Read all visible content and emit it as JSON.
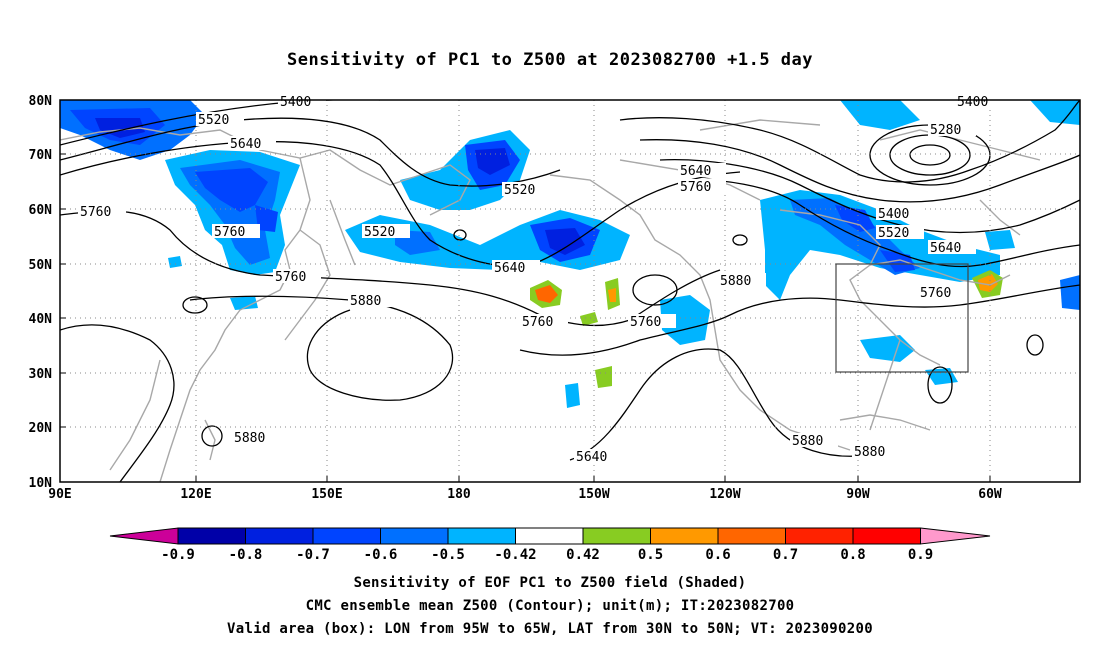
{
  "title": "Sensitivity of PC1 to Z500 at 2023082700 +1.5 day",
  "lat_labels": [
    "80N",
    "70N",
    "60N",
    "50N",
    "40N",
    "30N",
    "20N",
    "10N"
  ],
  "lon_labels": [
    "90E",
    "120E",
    "150E",
    "180",
    "150W",
    "120W",
    "90W",
    "60W"
  ],
  "contour_labels": [
    "5400",
    "5520",
    "5640",
    "5760",
    "5520",
    "5760",
    "5640",
    "5760",
    "5880",
    "5520",
    "5640",
    "5760",
    "5880",
    "5880",
    "5640",
    "5760",
    "5280",
    "5400",
    "5520",
    "5640",
    "5760",
    "5880",
    "5880",
    "5400"
  ],
  "colorbar": {
    "labels": [
      "-0.9",
      "-0.8",
      "-0.7",
      "-0.6",
      "-0.5",
      "-0.42",
      "0.42",
      "0.5",
      "0.6",
      "0.7",
      "0.8",
      "0.9"
    ],
    "colors": [
      "#cc0099",
      "#0000a8",
      "#0020e0",
      "#0044ff",
      "#0070ff",
      "#00b4ff",
      "#ffffff",
      "#88cc22",
      "#ff9900",
      "#ff6600",
      "#ff2200",
      "#ff0000",
      "#ff99cc"
    ]
  },
  "footer": {
    "line1": "Sensitivity of EOF PC1 to Z500 field (Shaded)",
    "line2": "CMC ensemble mean Z500 (Contour); unit(m); IT:2023082700",
    "line3": "Valid area (box): LON from 95W to 65W, LAT from 30N to 50N; VT: 2023090200"
  }
}
